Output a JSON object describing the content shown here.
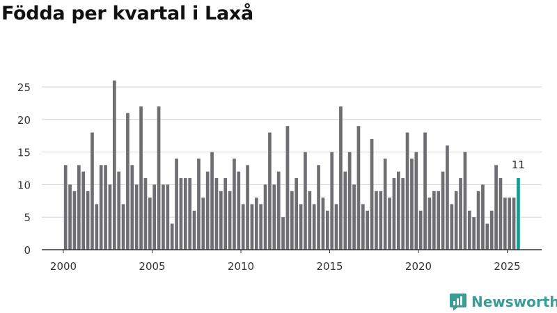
{
  "title": "Födda per kvartal i Laxå",
  "brand": {
    "name": "Newsworthy",
    "color": "#3a9c95"
  },
  "colors": {
    "bar": "#6f6e72",
    "highlight": "#1a9a96",
    "grid": "#d6d6d6",
    "axis": "#333333"
  },
  "chart_data": {
    "type": "bar",
    "title": "Födda per kvartal i Laxå",
    "xlabel": "",
    "ylabel": "",
    "ylim": [
      0,
      27
    ],
    "yticks": [
      0,
      5,
      10,
      15,
      20,
      25
    ],
    "xticks": [
      "2000",
      "2005",
      "2010",
      "2015",
      "2020",
      "2025"
    ],
    "grid": true,
    "legend": "none",
    "first_period": "2000 Q1",
    "last_period": "2025 Q3",
    "values": [
      13,
      10,
      9,
      13,
      12,
      9,
      18,
      7,
      13,
      13,
      10,
      26,
      12,
      7,
      21,
      13,
      10,
      22,
      11,
      8,
      10,
      22,
      10,
      10,
      4,
      14,
      11,
      11,
      11,
      6,
      14,
      8,
      12,
      15,
      11,
      9,
      11,
      9,
      14,
      12,
      7,
      13,
      7,
      8,
      7,
      10,
      18,
      10,
      12,
      5,
      19,
      9,
      11,
      7,
      15,
      9,
      7,
      13,
      8,
      6,
      15,
      7,
      22,
      12,
      15,
      10,
      19,
      7,
      6,
      17,
      9,
      9,
      14,
      8,
      11,
      12,
      11,
      18,
      14,
      15,
      6,
      18,
      8,
      9,
      9,
      12,
      16,
      7,
      9,
      11,
      15,
      6,
      5,
      9,
      10,
      4,
      6,
      13,
      11,
      8,
      8,
      8,
      11
    ],
    "highlight_last": true,
    "data_labels": [
      {
        "period": "2025 Q3",
        "value": 11,
        "text": "11"
      }
    ]
  }
}
